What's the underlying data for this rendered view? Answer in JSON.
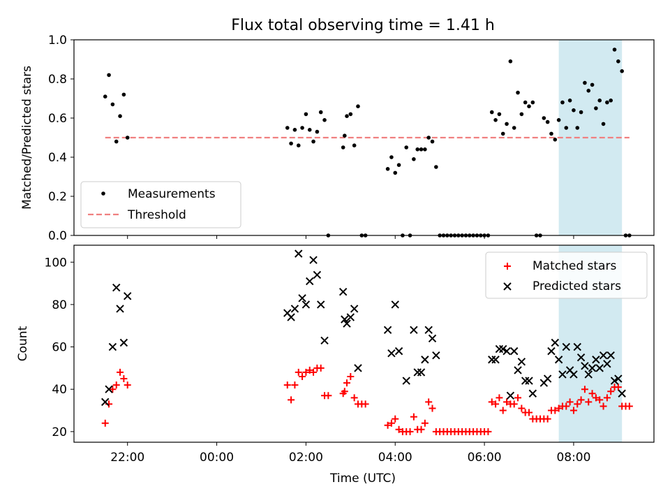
{
  "chart_data": [
    {
      "type": "scatter",
      "title": "Flux total observing time = 1.41 h",
      "ylabel": "Matched/Predicted stars",
      "xlabel": "",
      "ylim": [
        0,
        1
      ],
      "yticks": [
        "0.0",
        "0.2",
        "0.4",
        "0.6",
        "0.8",
        "1.0"
      ],
      "legend": {
        "placement": "lower-left",
        "entries": [
          "Measurements",
          "Threshold"
        ]
      },
      "threshold": 0.5,
      "threshold_color": "#f08080",
      "highlight_span": {
        "start": "07:40",
        "end": "09:05",
        "color": "#add8e6"
      },
      "series": [
        {
          "name": "Measurements",
          "marker": "dot",
          "color": "#000000",
          "points": [
            [
              "21:30",
              0.71
            ],
            [
              "21:35",
              0.82
            ],
            [
              "21:40",
              0.67
            ],
            [
              "21:45",
              0.48
            ],
            [
              "21:50",
              0.61
            ],
            [
              "21:55",
              0.72
            ],
            [
              "22:00",
              0.5
            ],
            [
              "01:35",
              0.55
            ],
            [
              "01:40",
              0.47
            ],
            [
              "01:45",
              0.54
            ],
            [
              "01:50",
              0.46
            ],
            [
              "01:55",
              0.55
            ],
            [
              "02:00",
              0.62
            ],
            [
              "02:05",
              0.54
            ],
            [
              "02:10",
              0.48
            ],
            [
              "02:15",
              0.53
            ],
            [
              "02:20",
              0.63
            ],
            [
              "02:25",
              0.59
            ],
            [
              "02:30",
              0.0
            ],
            [
              "02:50",
              0.45
            ],
            [
              "02:52",
              0.51
            ],
            [
              "02:55",
              0.61
            ],
            [
              "03:00",
              0.62
            ],
            [
              "03:05",
              0.46
            ],
            [
              "03:10",
              0.66
            ],
            [
              "03:15",
              0.0
            ],
            [
              "03:20",
              0.0
            ],
            [
              "03:50",
              0.34
            ],
            [
              "03:55",
              0.4
            ],
            [
              "04:00",
              0.32
            ],
            [
              "04:05",
              0.36
            ],
            [
              "04:10",
              0.0
            ],
            [
              "04:15",
              0.45
            ],
            [
              "04:20",
              0.0
            ],
            [
              "04:25",
              0.39
            ],
            [
              "04:30",
              0.44
            ],
            [
              "04:35",
              0.44
            ],
            [
              "04:40",
              0.44
            ],
            [
              "04:45",
              0.5
            ],
            [
              "04:50",
              0.48
            ],
            [
              "04:55",
              0.35
            ],
            [
              "05:00",
              0.0
            ],
            [
              "05:05",
              0.0
            ],
            [
              "05:10",
              0.0
            ],
            [
              "05:15",
              0.0
            ],
            [
              "05:20",
              0.0
            ],
            [
              "05:25",
              0.0
            ],
            [
              "05:30",
              0.0
            ],
            [
              "05:35",
              0.0
            ],
            [
              "05:40",
              0.0
            ],
            [
              "05:45",
              0.0
            ],
            [
              "05:50",
              0.0
            ],
            [
              "05:55",
              0.0
            ],
            [
              "06:00",
              0.0
            ],
            [
              "06:05",
              0.0
            ],
            [
              "06:10",
              0.63
            ],
            [
              "06:15",
              0.59
            ],
            [
              "06:20",
              0.62
            ],
            [
              "06:25",
              0.52
            ],
            [
              "06:30",
              0.57
            ],
            [
              "06:35",
              0.89
            ],
            [
              "06:40",
              0.55
            ],
            [
              "06:45",
              0.73
            ],
            [
              "06:50",
              0.62
            ],
            [
              "06:55",
              0.68
            ],
            [
              "07:00",
              0.66
            ],
            [
              "07:05",
              0.68
            ],
            [
              "07:10",
              0.0
            ],
            [
              "07:15",
              0.0
            ],
            [
              "07:20",
              0.6
            ],
            [
              "07:25",
              0.58
            ],
            [
              "07:30",
              0.52
            ],
            [
              "07:35",
              0.49
            ],
            [
              "07:40",
              0.59
            ],
            [
              "07:45",
              0.68
            ],
            [
              "07:50",
              0.55
            ],
            [
              "07:55",
              0.69
            ],
            [
              "08:00",
              0.64
            ],
            [
              "08:05",
              0.55
            ],
            [
              "08:10",
              0.63
            ],
            [
              "08:15",
              0.78
            ],
            [
              "08:20",
              0.74
            ],
            [
              "08:25",
              0.77
            ],
            [
              "08:30",
              0.65
            ],
            [
              "08:35",
              0.69
            ],
            [
              "08:40",
              0.57
            ],
            [
              "08:45",
              0.68
            ],
            [
              "08:50",
              0.69
            ],
            [
              "08:55",
              0.95
            ],
            [
              "09:00",
              0.89
            ],
            [
              "09:05",
              0.84
            ],
            [
              "09:10",
              0.0
            ],
            [
              "09:15",
              0.0
            ]
          ]
        }
      ]
    },
    {
      "type": "scatter",
      "title": "",
      "ylabel": "Count",
      "xlabel": "Time (UTC)",
      "ylim": [
        15,
        108
      ],
      "yticks": [
        "20",
        "40",
        "60",
        "80",
        "100"
      ],
      "xticks": [
        "22:00",
        "00:00",
        "02:00",
        "04:00",
        "06:00",
        "08:00"
      ],
      "legend": {
        "placement": "top-right",
        "entries": [
          "Matched stars",
          "Predicted stars"
        ]
      },
      "highlight_span": {
        "start": "07:40",
        "end": "09:05",
        "color": "#add8e6"
      },
      "series": [
        {
          "name": "Matched stars",
          "marker": "plus",
          "color": "#ff0000",
          "points": [
            [
              "21:30",
              24
            ],
            [
              "21:35",
              33
            ],
            [
              "21:40",
              40
            ],
            [
              "21:45",
              42
            ],
            [
              "21:50",
              48
            ],
            [
              "21:55",
              45
            ],
            [
              "22:00",
              42
            ],
            [
              "01:35",
              42
            ],
            [
              "01:40",
              35
            ],
            [
              "01:45",
              42
            ],
            [
              "01:50",
              48
            ],
            [
              "01:55",
              46
            ],
            [
              "02:00",
              48
            ],
            [
              "02:05",
              49
            ],
            [
              "02:10",
              48
            ],
            [
              "02:15",
              50
            ],
            [
              "02:20",
              50
            ],
            [
              "02:25",
              37
            ],
            [
              "02:30",
              37
            ],
            [
              "02:50",
              38
            ],
            [
              "02:52",
              39
            ],
            [
              "02:55",
              43
            ],
            [
              "03:00",
              46
            ],
            [
              "03:05",
              36
            ],
            [
              "03:10",
              33
            ],
            [
              "03:15",
              33
            ],
            [
              "03:20",
              33
            ],
            [
              "03:50",
              23
            ],
            [
              "03:55",
              24
            ],
            [
              "04:00",
              26
            ],
            [
              "04:05",
              21
            ],
            [
              "04:10",
              20
            ],
            [
              "04:15",
              20
            ],
            [
              "04:20",
              20
            ],
            [
              "04:25",
              27
            ],
            [
              "04:30",
              21
            ],
            [
              "04:35",
              21
            ],
            [
              "04:40",
              24
            ],
            [
              "04:45",
              34
            ],
            [
              "04:50",
              31
            ],
            [
              "04:55",
              20
            ],
            [
              "05:00",
              20
            ],
            [
              "05:05",
              20
            ],
            [
              "05:10",
              20
            ],
            [
              "05:15",
              20
            ],
            [
              "05:20",
              20
            ],
            [
              "05:25",
              20
            ],
            [
              "05:30",
              20
            ],
            [
              "05:35",
              20
            ],
            [
              "05:40",
              20
            ],
            [
              "05:45",
              20
            ],
            [
              "05:50",
              20
            ],
            [
              "05:55",
              20
            ],
            [
              "06:00",
              20
            ],
            [
              "06:05",
              20
            ],
            [
              "06:10",
              34
            ],
            [
              "06:15",
              33
            ],
            [
              "06:20",
              36
            ],
            [
              "06:25",
              30
            ],
            [
              "06:30",
              34
            ],
            [
              "06:35",
              33
            ],
            [
              "06:40",
              33
            ],
            [
              "06:45",
              36
            ],
            [
              "06:50",
              31
            ],
            [
              "06:55",
              29
            ],
            [
              "07:00",
              29
            ],
            [
              "07:05",
              26
            ],
            [
              "07:10",
              26
            ],
            [
              "07:15",
              26
            ],
            [
              "07:20",
              26
            ],
            [
              "07:25",
              26
            ],
            [
              "07:30",
              30
            ],
            [
              "07:35",
              30
            ],
            [
              "07:40",
              31
            ],
            [
              "07:45",
              32
            ],
            [
              "07:50",
              32
            ],
            [
              "07:55",
              34
            ],
            [
              "08:00",
              30
            ],
            [
              "08:05",
              33
            ],
            [
              "08:10",
              35
            ],
            [
              "08:15",
              40
            ],
            [
              "08:20",
              34
            ],
            [
              "08:25",
              38
            ],
            [
              "08:30",
              36
            ],
            [
              "08:35",
              35
            ],
            [
              "08:40",
              32
            ],
            [
              "08:45",
              36
            ],
            [
              "08:50",
              39
            ],
            [
              "08:55",
              41
            ],
            [
              "09:00",
              41
            ],
            [
              "09:05",
              32
            ],
            [
              "09:10",
              32
            ],
            [
              "09:15",
              32
            ]
          ]
        },
        {
          "name": "Predicted stars",
          "marker": "cross",
          "color": "#000000",
          "points": [
            [
              "21:30",
              34
            ],
            [
              "21:35",
              40
            ],
            [
              "21:40",
              60
            ],
            [
              "21:45",
              88
            ],
            [
              "21:50",
              78
            ],
            [
              "21:55",
              62
            ],
            [
              "22:00",
              84
            ],
            [
              "01:35",
              76
            ],
            [
              "01:40",
              74
            ],
            [
              "01:45",
              78
            ],
            [
              "01:50",
              104
            ],
            [
              "01:55",
              83
            ],
            [
              "02:00",
              80
            ],
            [
              "02:05",
              91
            ],
            [
              "02:10",
              101
            ],
            [
              "02:15",
              94
            ],
            [
              "02:20",
              80
            ],
            [
              "02:25",
              63
            ],
            [
              "02:50",
              86
            ],
            [
              "02:52",
              73
            ],
            [
              "02:55",
              71
            ],
            [
              "03:00",
              74
            ],
            [
              "03:05",
              78
            ],
            [
              "03:10",
              50
            ],
            [
              "03:50",
              68
            ],
            [
              "03:55",
              57
            ],
            [
              "04:00",
              80
            ],
            [
              "04:05",
              58
            ],
            [
              "04:15",
              44
            ],
            [
              "04:25",
              68
            ],
            [
              "04:30",
              48
            ],
            [
              "04:35",
              48
            ],
            [
              "04:40",
              54
            ],
            [
              "04:45",
              68
            ],
            [
              "04:50",
              64
            ],
            [
              "04:55",
              56
            ],
            [
              "06:10",
              54
            ],
            [
              "06:15",
              54
            ],
            [
              "06:20",
              59
            ],
            [
              "06:25",
              59
            ],
            [
              "06:30",
              58
            ],
            [
              "06:35",
              37
            ],
            [
              "06:40",
              58
            ],
            [
              "06:45",
              49
            ],
            [
              "06:50",
              53
            ],
            [
              "06:55",
              44
            ],
            [
              "07:00",
              44
            ],
            [
              "07:05",
              38
            ],
            [
              "07:20",
              43
            ],
            [
              "07:25",
              45
            ],
            [
              "07:30",
              58
            ],
            [
              "07:35",
              62
            ],
            [
              "07:40",
              54
            ],
            [
              "07:45",
              47
            ],
            [
              "07:50",
              60
            ],
            [
              "07:55",
              49
            ],
            [
              "08:00",
              47
            ],
            [
              "08:05",
              60
            ],
            [
              "08:10",
              55
            ],
            [
              "08:15",
              51
            ],
            [
              "08:20",
              47
            ],
            [
              "08:25",
              50
            ],
            [
              "08:30",
              54
            ],
            [
              "08:35",
              50
            ],
            [
              "08:40",
              56
            ],
            [
              "08:45",
              52
            ],
            [
              "08:50",
              56
            ],
            [
              "08:55",
              44
            ],
            [
              "09:00",
              45
            ],
            [
              "09:05",
              38
            ]
          ]
        }
      ]
    }
  ]
}
